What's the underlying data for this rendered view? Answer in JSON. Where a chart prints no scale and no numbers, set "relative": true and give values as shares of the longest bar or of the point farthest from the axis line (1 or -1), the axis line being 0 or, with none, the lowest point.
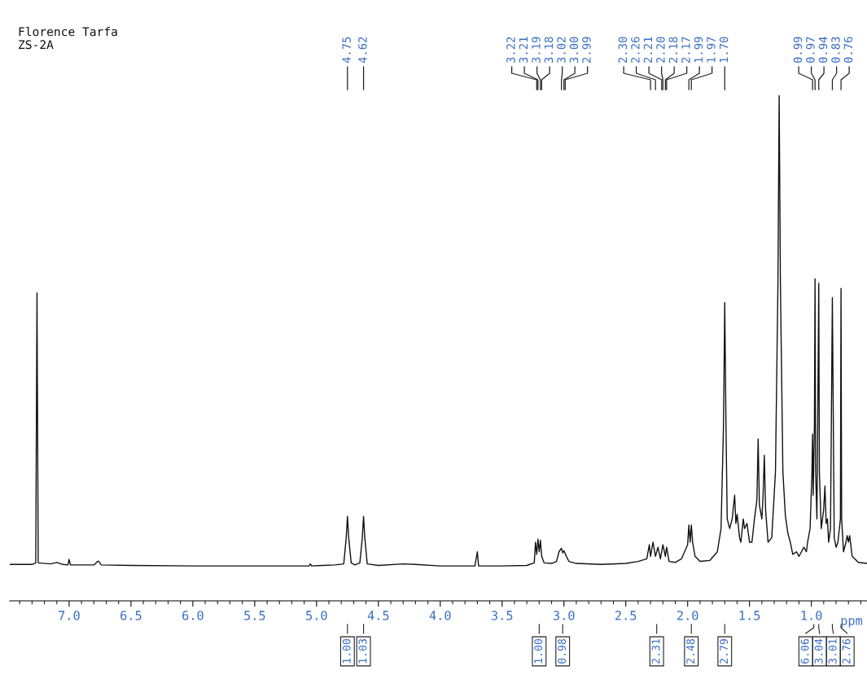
{
  "chart_data": {
    "type": "line",
    "title": "Florence Tarfa",
    "subtitle": "ZS-2A",
    "xlabel": "ppm",
    "relative": true,
    "color": "#111111",
    "grid": false,
    "tick_labels": "x",
    "xlim": [
      7.48,
      0.55
    ],
    "xticks": [
      {
        "value": 7.0,
        "label": "7.0"
      },
      {
        "value": 6.5,
        "label": "6.5"
      },
      {
        "value": 6.0,
        "label": "6.0"
      },
      {
        "value": 5.5,
        "label": "5.5"
      },
      {
        "value": 5.0,
        "label": "5.0"
      },
      {
        "value": 4.5,
        "label": "4.5"
      },
      {
        "value": 4.0,
        "label": "4.0"
      },
      {
        "value": 3.5,
        "label": "3.5"
      },
      {
        "value": 3.0,
        "label": "3.0"
      },
      {
        "value": 2.5,
        "label": "2.5"
      },
      {
        "value": 2.0,
        "label": "2.0"
      },
      {
        "value": 1.5,
        "label": "1.5"
      },
      {
        "value": 1.0,
        "label": "1.0"
      }
    ],
    "x": [
      7.48,
      7.3,
      7.27,
      7.26,
      7.25,
      7.15,
      7.1,
      7.05,
      7.01,
      7.0,
      6.99,
      6.8,
      6.77,
      6.76,
      6.74,
      6.5,
      6.0,
      5.5,
      5.06,
      5.05,
      5.04,
      4.95,
      4.85,
      4.78,
      4.76,
      4.75,
      4.74,
      4.72,
      4.69,
      4.65,
      4.63,
      4.62,
      4.61,
      4.59,
      4.5,
      4.3,
      4.2,
      4.0,
      3.72,
      3.7,
      3.69,
      3.5,
      3.3,
      3.24,
      3.23,
      3.22,
      3.21,
      3.2,
      3.19,
      3.18,
      3.16,
      3.1,
      3.06,
      3.04,
      3.02,
      3.01,
      3.0,
      2.98,
      2.96,
      2.9,
      2.7,
      2.5,
      2.4,
      2.33,
      2.31,
      2.3,
      2.28,
      2.26,
      2.24,
      2.22,
      2.2,
      2.18,
      2.17,
      2.15,
      2.1,
      2.05,
      2.0,
      1.99,
      1.98,
      1.97,
      1.96,
      1.94,
      1.9,
      1.82,
      1.76,
      1.73,
      1.71,
      1.7,
      1.69,
      1.68,
      1.66,
      1.64,
      1.62,
      1.61,
      1.6,
      1.58,
      1.57,
      1.55,
      1.54,
      1.52,
      1.5,
      1.48,
      1.46,
      1.44,
      1.43,
      1.42,
      1.4,
      1.39,
      1.38,
      1.37,
      1.35,
      1.32,
      1.29,
      1.27,
      1.26,
      1.25,
      1.23,
      1.21,
      1.19,
      1.17,
      1.15,
      1.12,
      1.1,
      1.08,
      1.06,
      1.04,
      1.03,
      1.01,
      0.995,
      0.99,
      0.985,
      0.975,
      0.97,
      0.965,
      0.955,
      0.95,
      0.94,
      0.935,
      0.92,
      0.91,
      0.9,
      0.89,
      0.88,
      0.87,
      0.86,
      0.845,
      0.83,
      0.815,
      0.8,
      0.785,
      0.765,
      0.76,
      0.755,
      0.74,
      0.72,
      0.71,
      0.7,
      0.69,
      0.67,
      0.62,
      0.55
    ],
    "values": [
      0.072,
      0.072,
      0.075,
      0.609,
      0.075,
      0.073,
      0.076,
      0.072,
      0.071,
      0.082,
      0.071,
      0.071,
      0.078,
      0.078,
      0.071,
      0.07,
      0.069,
      0.069,
      0.069,
      0.073,
      0.069,
      0.07,
      0.071,
      0.073,
      0.125,
      0.167,
      0.125,
      0.075,
      0.071,
      0.075,
      0.125,
      0.167,
      0.125,
      0.073,
      0.07,
      0.073,
      0.072,
      0.069,
      0.069,
      0.097,
      0.069,
      0.069,
      0.07,
      0.075,
      0.116,
      0.092,
      0.122,
      0.097,
      0.12,
      0.088,
      0.075,
      0.074,
      0.078,
      0.097,
      0.104,
      0.095,
      0.099,
      0.088,
      0.078,
      0.074,
      0.072,
      0.074,
      0.078,
      0.083,
      0.111,
      0.088,
      0.116,
      0.088,
      0.106,
      0.083,
      0.111,
      0.088,
      0.106,
      0.078,
      0.076,
      0.083,
      0.111,
      0.15,
      0.116,
      0.15,
      0.116,
      0.088,
      0.078,
      0.08,
      0.097,
      0.143,
      0.348,
      0.59,
      0.348,
      0.162,
      0.143,
      0.162,
      0.209,
      0.153,
      0.171,
      0.125,
      0.116,
      0.162,
      0.143,
      0.153,
      0.116,
      0.116,
      0.162,
      0.199,
      0.32,
      0.19,
      0.162,
      0.209,
      0.288,
      0.181,
      0.116,
      0.125,
      0.255,
      0.628,
      1.0,
      0.628,
      0.255,
      0.169,
      0.134,
      0.116,
      0.092,
      0.097,
      0.088,
      0.097,
      0.106,
      0.097,
      0.116,
      0.143,
      0.255,
      0.33,
      0.209,
      0.348,
      0.637,
      0.255,
      0.162,
      0.302,
      0.628,
      0.255,
      0.143,
      0.162,
      0.181,
      0.227,
      0.153,
      0.162,
      0.116,
      0.143,
      0.6,
      0.125,
      0.106,
      0.116,
      0.162,
      0.618,
      0.162,
      0.097,
      0.116,
      0.129,
      0.116,
      0.129,
      0.088,
      0.076,
      0.074
    ],
    "annotations": [
      {
        "text": "4.75",
        "x": 4.75
      },
      {
        "text": "4.62",
        "x": 4.62
      },
      {
        "text": "3.22",
        "x": 3.22
      },
      {
        "text": "3.21",
        "x": 3.21
      },
      {
        "text": "3.19",
        "x": 3.19
      },
      {
        "text": "3.18",
        "x": 3.18
      },
      {
        "text": "3.02",
        "x": 3.02
      },
      {
        "text": "3.00",
        "x": 3.0
      },
      {
        "text": "2.99",
        "x": 2.99
      },
      {
        "text": "2.30",
        "x": 2.3
      },
      {
        "text": "2.26",
        "x": 2.26
      },
      {
        "text": "2.21",
        "x": 2.21
      },
      {
        "text": "2.20",
        "x": 2.2
      },
      {
        "text": "2.18",
        "x": 2.18
      },
      {
        "text": "2.17",
        "x": 2.17
      },
      {
        "text": "1.99",
        "x": 1.99
      },
      {
        "text": "1.97",
        "x": 1.97
      },
      {
        "text": "1.70",
        "x": 1.7
      },
      {
        "text": "0.99",
        "x": 0.99
      },
      {
        "text": "0.97",
        "x": 0.97
      },
      {
        "text": "0.94",
        "x": 0.94
      },
      {
        "text": "0.83",
        "x": 0.83
      },
      {
        "text": "0.76",
        "x": 0.76
      },
      {
        "text": "1.00",
        "x": 4.75
      },
      {
        "text": "1.03",
        "x": 4.62
      },
      {
        "text": "1.00",
        "x": 3.2
      },
      {
        "text": "0.98",
        "x": 3.01
      },
      {
        "text": "2.31",
        "x": 2.25
      },
      {
        "text": "2.48",
        "x": 1.97
      },
      {
        "text": "2.79",
        "x": 1.7
      },
      {
        "text": "6.06",
        "x": 0.98
      },
      {
        "text": "3.04",
        "x": 0.94
      },
      {
        "text": "3.01",
        "x": 0.83
      },
      {
        "text": "2.76",
        "x": 0.76
      }
    ]
  }
}
